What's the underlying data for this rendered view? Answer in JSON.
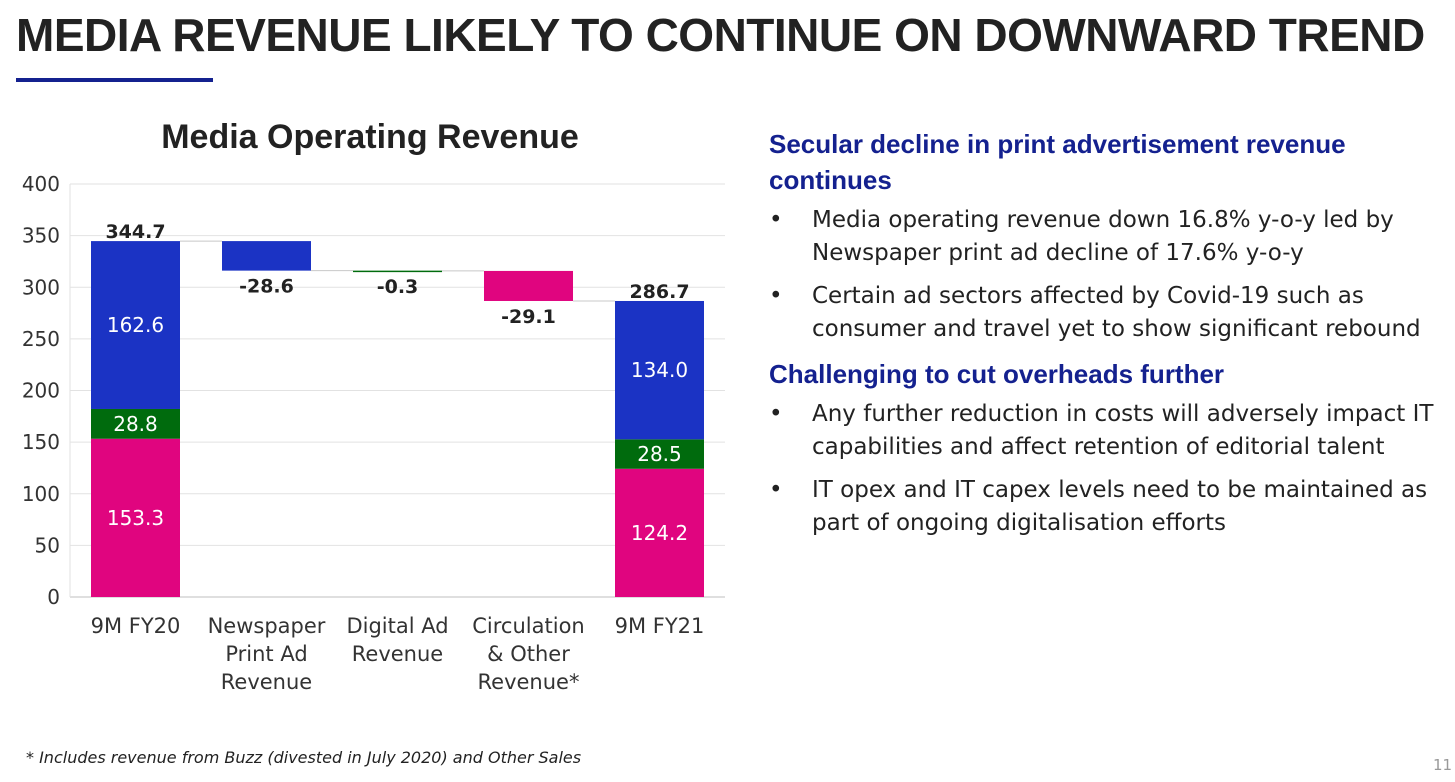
{
  "slide": {
    "title": "MEDIA REVENUE LIKELY TO CONTINUE ON DOWNWARD TREND",
    "footnote": "* Includes revenue from Buzz (divested in July 2020) and Other Sales",
    "page_number": "11",
    "accent_color": "#14218f"
  },
  "chart_data": {
    "type": "bar",
    "subtype": "waterfall",
    "title": "Media Operating Revenue",
    "xlabel": "",
    "ylabel": "",
    "ylim": [
      0,
      400
    ],
    "y_ticks": [
      0,
      50,
      100,
      150,
      200,
      250,
      300,
      350,
      400
    ],
    "grid": true,
    "categories": [
      [
        "9M FY20"
      ],
      [
        "Newspaper",
        "Print Ad",
        "Revenue"
      ],
      [
        "Digital Ad",
        "Revenue"
      ],
      [
        "Circulation",
        "& Other",
        "Revenue*"
      ],
      [
        "9M FY21"
      ]
    ],
    "totals": [
      {
        "category_index": 0,
        "total": 344.7,
        "total_label": "344.7",
        "segments": [
          {
            "value": 153.3,
            "label": "153.3",
            "color": "#e0057f"
          },
          {
            "value": 28.8,
            "label": "28.8",
            "color": "#006b0d"
          },
          {
            "value": 162.6,
            "label": "162.6",
            "color": "#1b33c4"
          }
        ]
      },
      {
        "category_index": 4,
        "total": 286.7,
        "total_label": "286.7",
        "segments": [
          {
            "value": 124.2,
            "label": "124.2",
            "color": "#e0057f"
          },
          {
            "value": 28.5,
            "label": "28.5",
            "color": "#006b0d"
          },
          {
            "value": 134.0,
            "label": "134.0",
            "color": "#1b33c4"
          }
        ]
      }
    ],
    "changes": [
      {
        "category_index": 1,
        "from": 344.7,
        "value": -28.6,
        "label": "-28.6",
        "color": "#1b33c4"
      },
      {
        "category_index": 2,
        "from": 316.1,
        "value": -0.3,
        "label": "-0.3",
        "color": "#006b0d"
      },
      {
        "category_index": 3,
        "from": 315.8,
        "value": -29.1,
        "label": "-29.1",
        "color": "#e0057f"
      }
    ]
  },
  "sections": [
    {
      "heading": "Secular decline in print advertisement revenue continues",
      "bullets": [
        "Media operating revenue down 16.8% y-o-y led by Newspaper print ad decline of 17.6% y-o-y",
        "Certain ad sectors affected by Covid-19 such as consumer and travel yet to show significant rebound"
      ]
    },
    {
      "heading": "Challenging to cut overheads further",
      "bullets": [
        "Any further reduction in costs will adversely impact IT capabilities and affect retention of editorial talent",
        "IT opex and IT capex levels need to be maintained as part of ongoing digitalisation efforts"
      ]
    }
  ],
  "bullet_symbol": "•"
}
